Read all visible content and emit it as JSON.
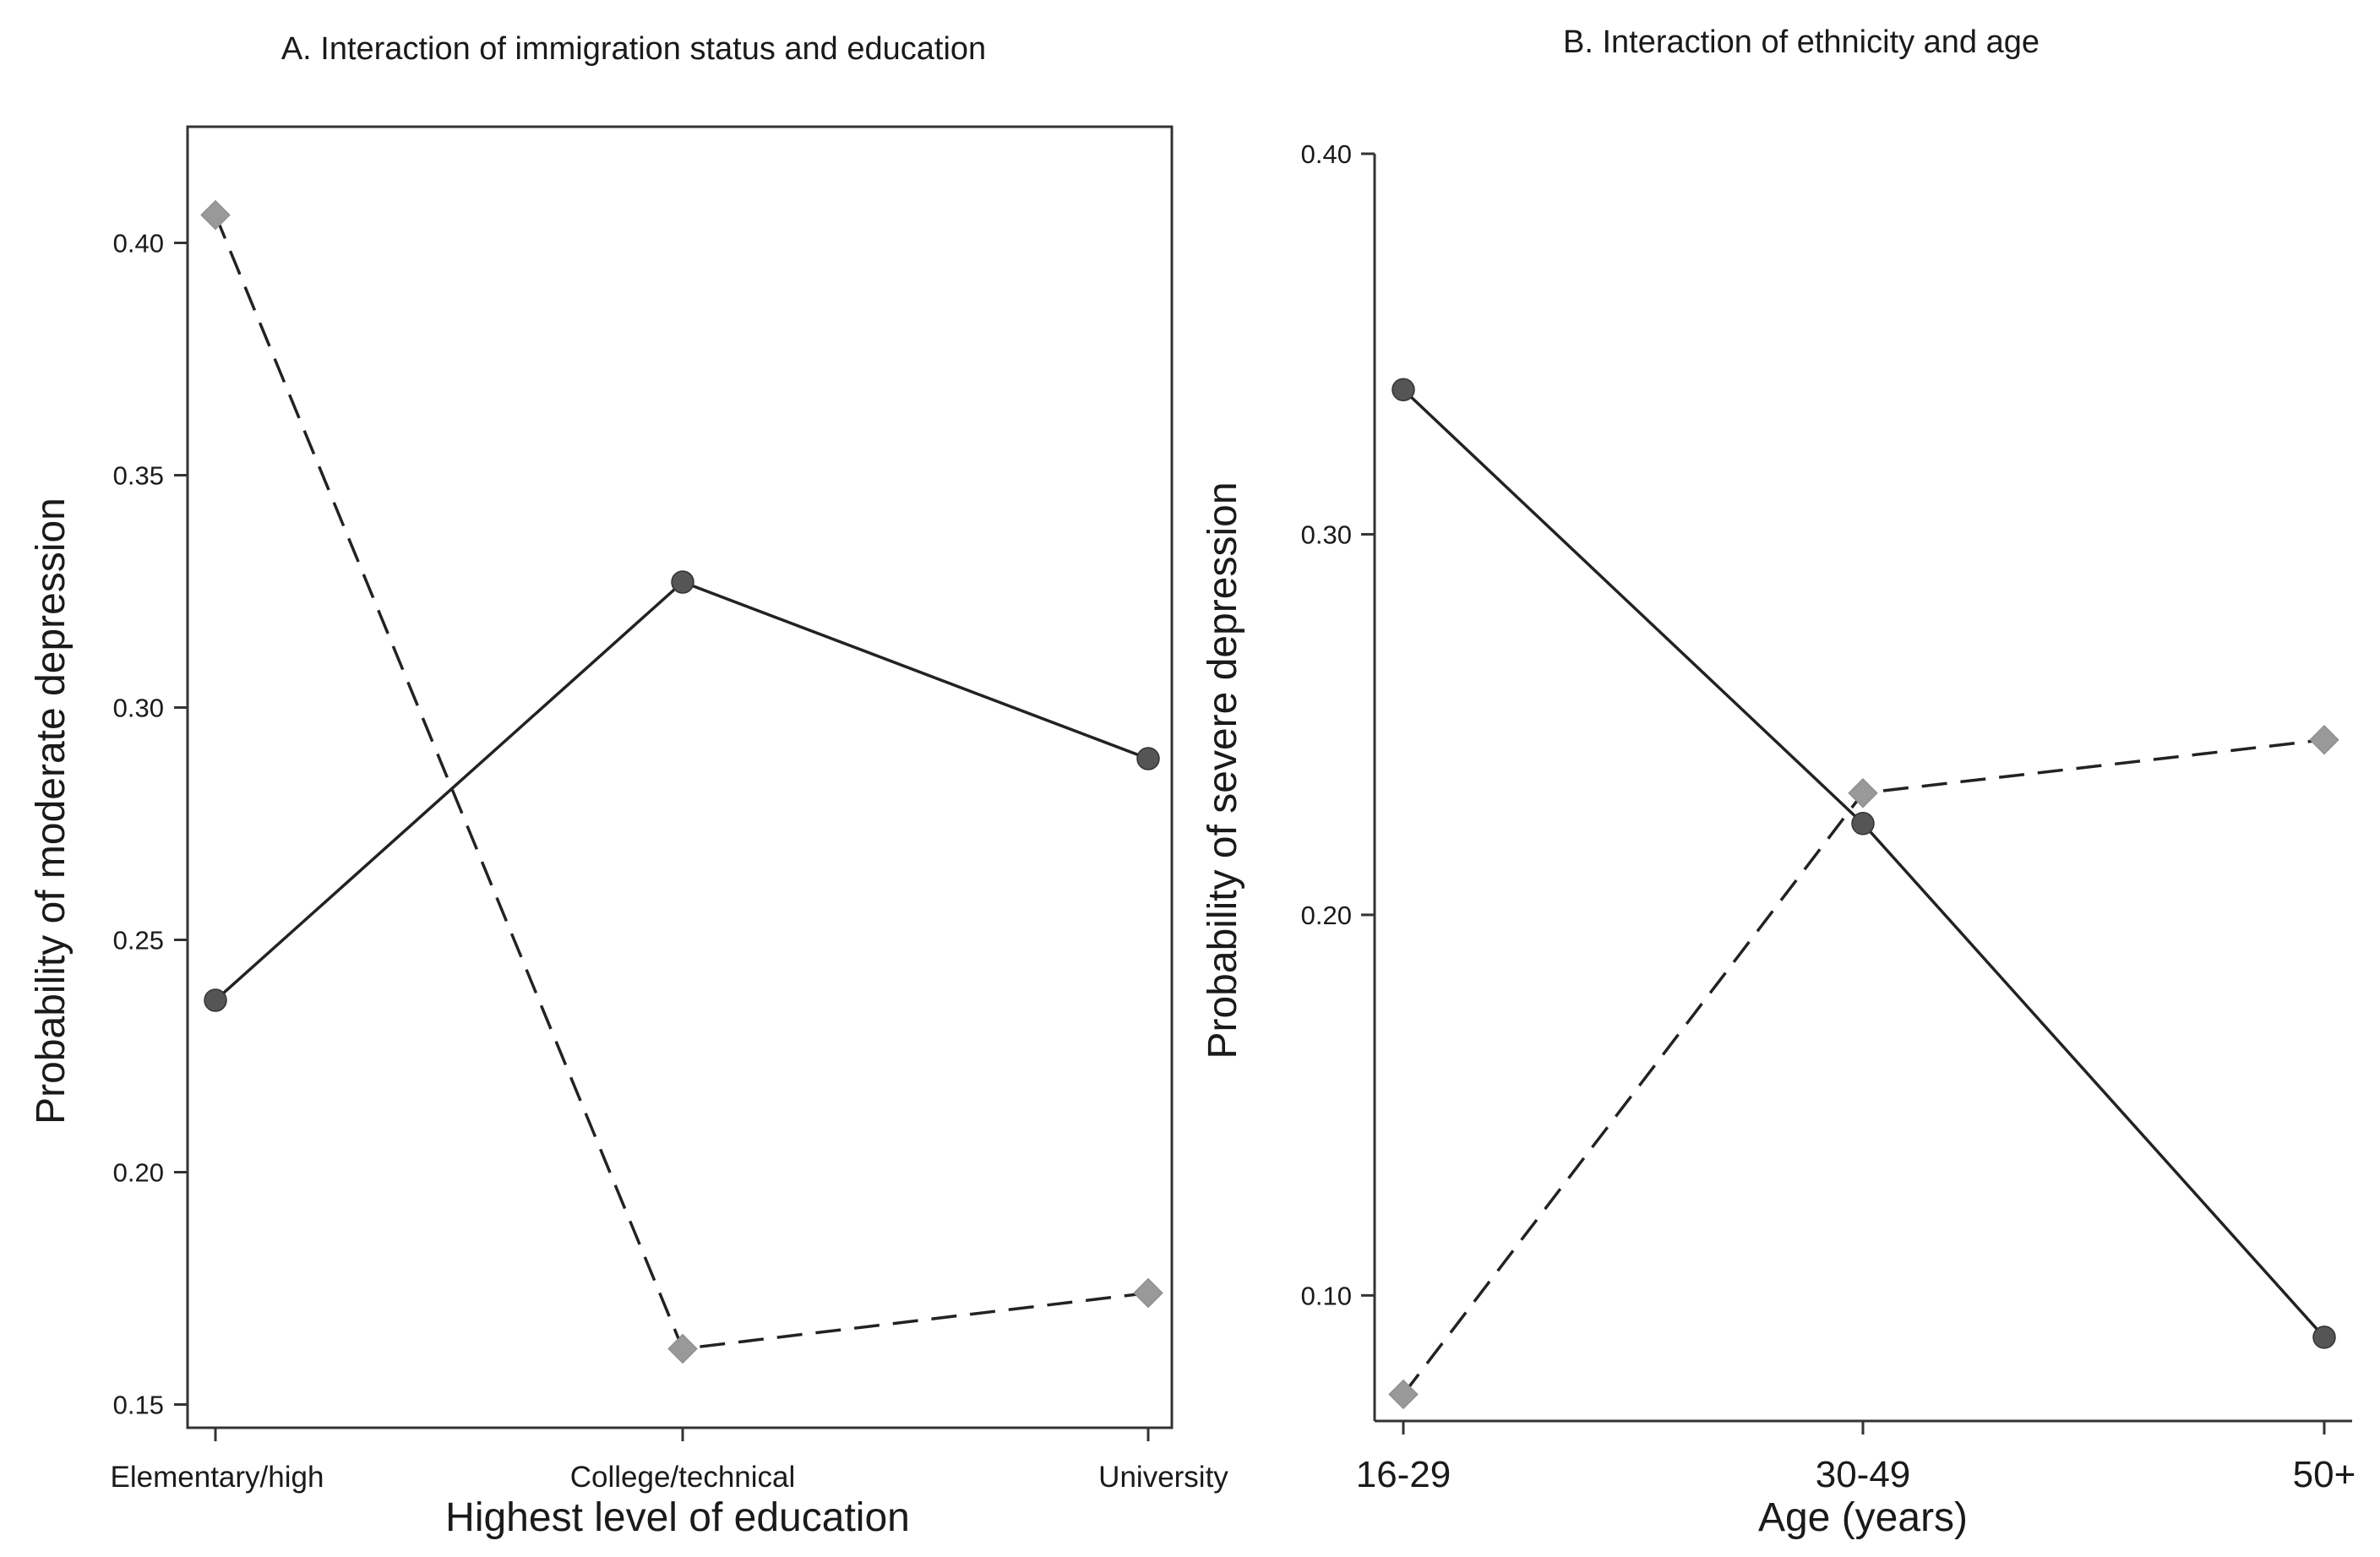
{
  "chart_data": [
    {
      "type": "line",
      "title": "A. Interaction of immigration status and education",
      "xlabel": "Highest level of education",
      "ylabel": "Probability of moderate depression",
      "categories": [
        "Elementary/high",
        "College/technical",
        "University"
      ],
      "ylim": [
        0.145,
        0.425
      ],
      "yticks": [
        0.15,
        0.2,
        0.25,
        0.3,
        0.35,
        0.4
      ],
      "ytick_labels": [
        "0.15",
        "0.20",
        "0.25",
        "0.30",
        "0.35",
        "0.40"
      ],
      "frame": "box",
      "grid": false,
      "series": [
        {
          "name": "solid-circle",
          "style": "solid",
          "marker": "circle",
          "values": [
            0.237,
            0.327,
            0.289
          ]
        },
        {
          "name": "dashed-diamond",
          "style": "dashed",
          "marker": "diamond",
          "values": [
            0.406,
            0.162,
            0.174
          ]
        }
      ]
    },
    {
      "type": "line",
      "title": "B. Interaction of ethnicity and age",
      "xlabel": "Age (years)",
      "ylabel": "Probability of severe depression",
      "categories": [
        "16-29",
        "30-49",
        "50+"
      ],
      "ylim": [
        0.067,
        0.4
      ],
      "yticks": [
        0.1,
        0.2,
        0.3,
        0.4
      ],
      "ytick_labels": [
        "0.10",
        "0.20",
        "0.30",
        "0.40"
      ],
      "frame": "open",
      "grid": false,
      "series": [
        {
          "name": "solid-circle",
          "style": "solid",
          "marker": "circle",
          "values": [
            0.338,
            0.224,
            0.089
          ]
        },
        {
          "name": "dashed-diamond",
          "style": "dashed",
          "marker": "diamond",
          "values": [
            0.074,
            0.232,
            0.246
          ]
        }
      ]
    }
  ]
}
